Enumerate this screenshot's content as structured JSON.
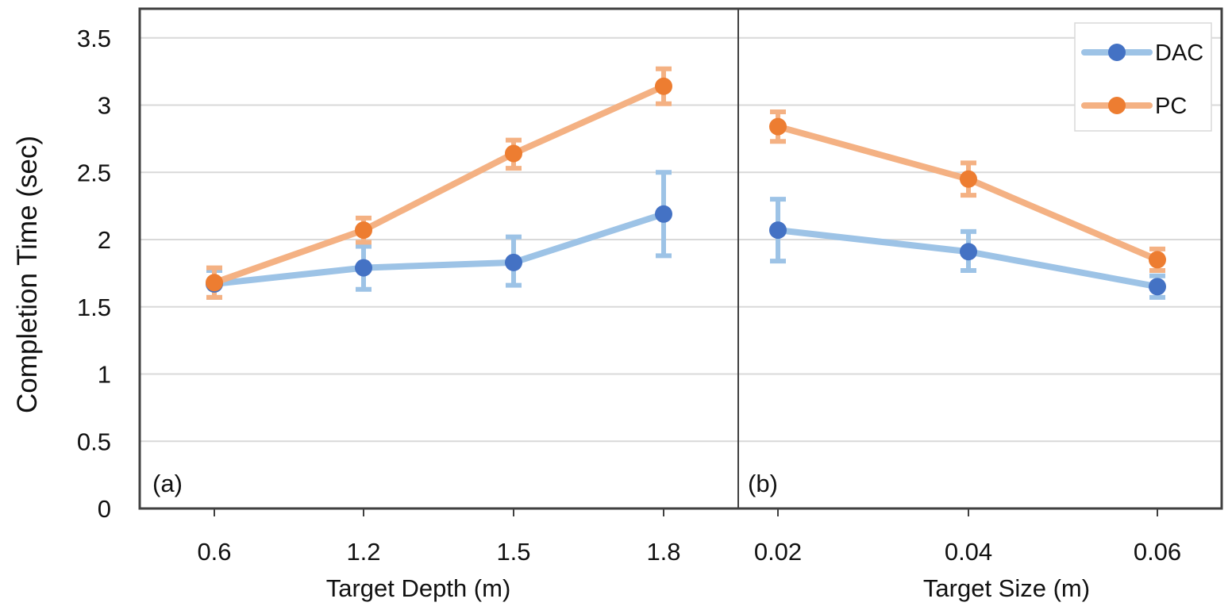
{
  "chart_data": {
    "type": "line",
    "ylabel": "Completion Time (sec)",
    "ylim": [
      0,
      3.7
    ],
    "yticks": [
      "0",
      "0.5",
      "1",
      "1.5",
      "2",
      "2.5",
      "3",
      "3.5"
    ],
    "grid": true,
    "legend": {
      "placement": "top-right",
      "entries": [
        "DAC",
        "PC"
      ]
    },
    "colors": {
      "DAC": "#4472c4",
      "PC": "#ed7d31",
      "DAC_line": "#9dc3e6",
      "PC_line": "#f4b183",
      "frame": "#404040",
      "grid": "#d9d9d9"
    },
    "panels": [
      {
        "label": "(a)",
        "xlabel": "Target Depth (m)",
        "categories": [
          "0.6",
          "1.2",
          "1.5",
          "1.8"
        ],
        "series": [
          {
            "name": "DAC",
            "values": [
              1.67,
              1.79,
              1.83,
              2.19
            ],
            "err_low": [
              0.1,
              0.16,
              0.17,
              0.31
            ],
            "err_high": [
              0.1,
              0.16,
              0.19,
              0.31
            ]
          },
          {
            "name": "PC",
            "values": [
              1.68,
              2.07,
              2.64,
              3.14
            ],
            "err_low": [
              0.11,
              0.09,
              0.11,
              0.13
            ],
            "err_high": [
              0.11,
              0.09,
              0.1,
              0.13
            ]
          }
        ]
      },
      {
        "label": "(b)",
        "xlabel": "Target Size (m)",
        "categories": [
          "0.02",
          "0.04",
          "0.06"
        ],
        "series": [
          {
            "name": "DAC",
            "values": [
              2.07,
              1.91,
              1.65
            ],
            "err_low": [
              0.23,
              0.14,
              0.08
            ],
            "err_high": [
              0.23,
              0.15,
              0.08
            ]
          },
          {
            "name": "PC",
            "values": [
              2.84,
              2.45,
              1.85
            ],
            "err_low": [
              0.11,
              0.12,
              0.08
            ],
            "err_high": [
              0.11,
              0.12,
              0.08
            ]
          }
        ]
      }
    ]
  }
}
